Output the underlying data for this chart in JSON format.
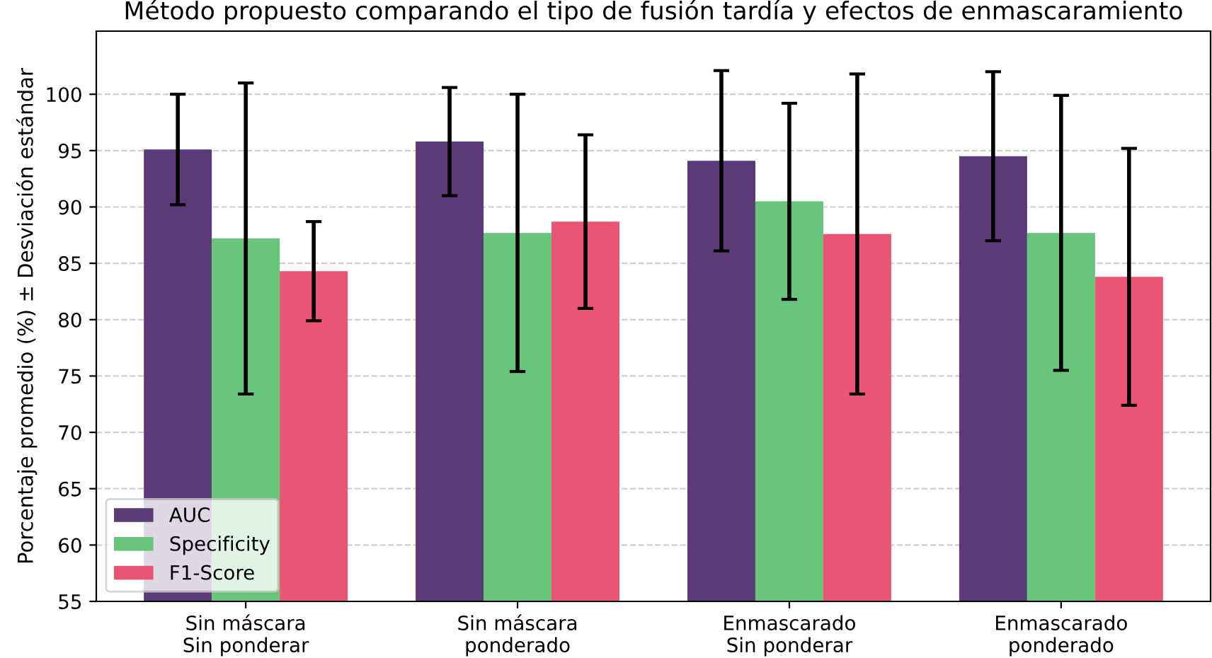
{
  "chart_data": {
    "type": "bar",
    "title": "Método propuesto comparando el tipo de fusión tardía y efectos de enmascaramiento",
    "ylabel": "Porcentaje promedio (%) ± Desviación estándar",
    "categories": [
      "Sin máscara\nSin ponderar",
      "Sin máscara\nponderado",
      "Enmascarado\nSin ponderar",
      "Enmascarado\nponderado"
    ],
    "series": [
      {
        "name": "AUC",
        "color": "#5b3a78",
        "values": [
          95.1,
          95.8,
          94.1,
          94.5
        ],
        "errors": [
          4.9,
          4.8,
          8.0,
          7.5
        ]
      },
      {
        "name": "Specificity",
        "color": "#66c57a",
        "values": [
          87.2,
          87.7,
          90.5,
          87.7
        ],
        "errors": [
          13.8,
          12.3,
          8.7,
          12.2
        ]
      },
      {
        "name": "F1-Score",
        "color": "#ea5573",
        "values": [
          84.3,
          88.7,
          87.6,
          83.8
        ],
        "errors": [
          4.4,
          7.7,
          14.2,
          11.4
        ]
      }
    ],
    "ylim": [
      55,
      105.6
    ],
    "yticks": [
      55,
      60,
      65,
      70,
      75,
      80,
      85,
      90,
      95,
      100
    ],
    "grid": "y",
    "legend": "lower left"
  }
}
